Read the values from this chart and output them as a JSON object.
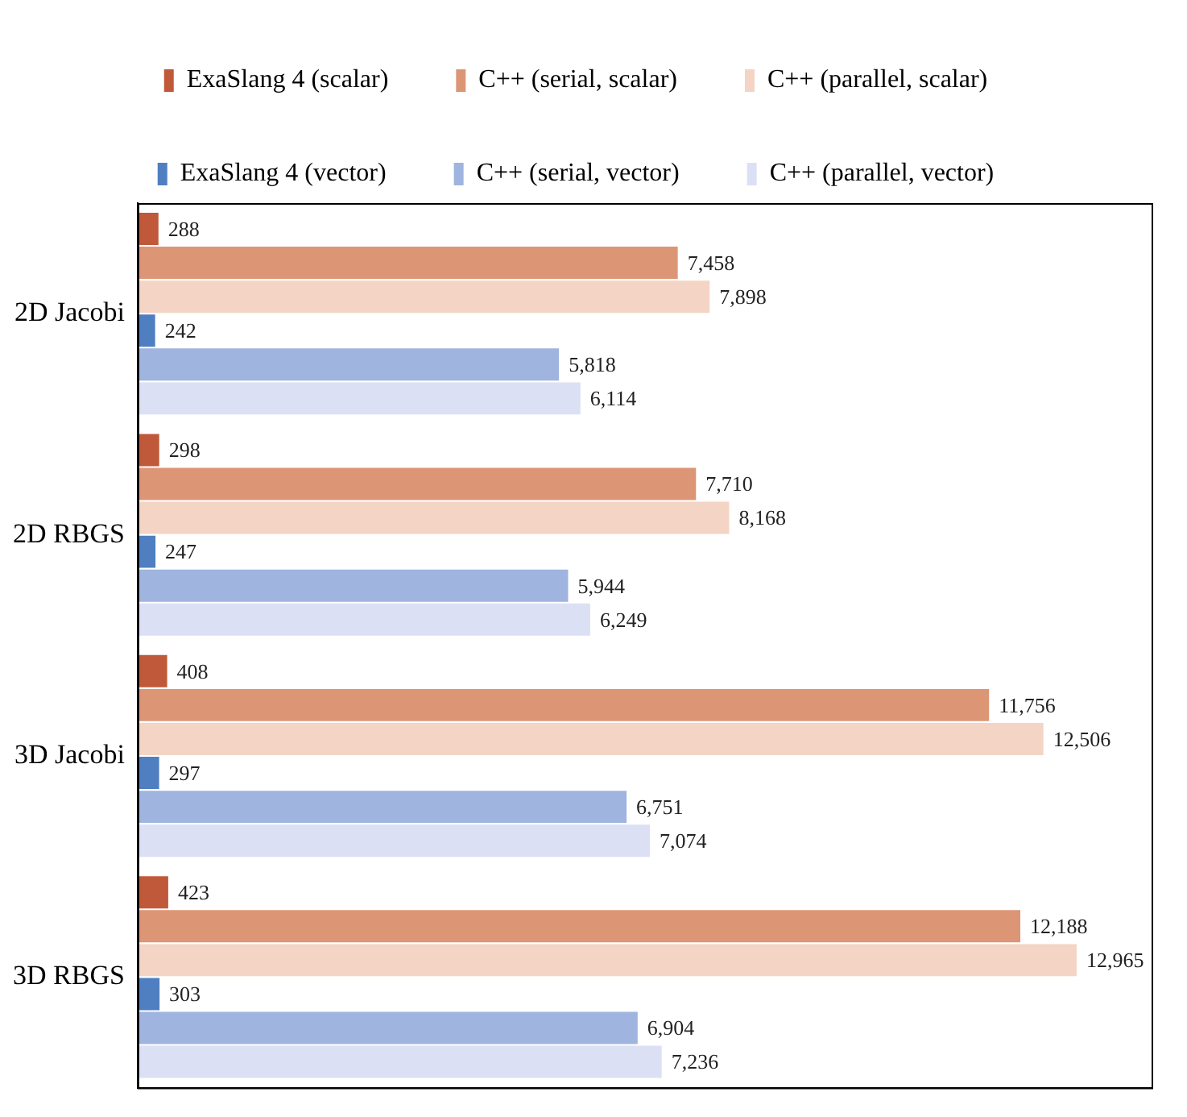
{
  "chart_data": {
    "type": "bar",
    "orientation": "horizontal",
    "categories": [
      "2D Jacobi",
      "2D RBGS",
      "3D Jacobi",
      "3D RBGS"
    ],
    "series": [
      {
        "name": "ExaSlang 4 (scalar)",
        "color": "#c0593a",
        "values": [
          288,
          298,
          408,
          423
        ],
        "value_labels": [
          "288",
          "298",
          "408",
          "423"
        ]
      },
      {
        "name": "C++ (serial, scalar)",
        "color": "#dc9676",
        "values": [
          7458,
          7710,
          11756,
          12188
        ],
        "value_labels": [
          "7,458",
          "7,710",
          "11,756",
          "12,188"
        ]
      },
      {
        "name": "C++ (parallel, scalar)",
        "color": "#f4d4c4",
        "values": [
          7898,
          8168,
          12506,
          12965
        ],
        "value_labels": [
          "7,898",
          "8,168",
          "12,506",
          "12,965"
        ]
      },
      {
        "name": "ExaSlang 4 (vector)",
        "color": "#4f7fc0",
        "values": [
          242,
          247,
          297,
          303
        ],
        "value_labels": [
          "242",
          "247",
          "297",
          "303"
        ]
      },
      {
        "name": "C++ (serial, vector)",
        "color": "#9fb4de",
        "values": [
          5818,
          5944,
          6751,
          6904
        ],
        "value_labels": [
          "5,818",
          "5,944",
          "6,751",
          "6,904"
        ]
      },
      {
        "name": "C++ (parallel, vector)",
        "color": "#dbe0f5",
        "values": [
          6114,
          6249,
          7074,
          7236
        ],
        "value_labels": [
          "6,114",
          "6,249",
          "7,074",
          "7,236"
        ]
      }
    ],
    "xlim": [
      0,
      14000
    ],
    "legend": "top",
    "grid": false,
    "tick_labels": "y"
  }
}
